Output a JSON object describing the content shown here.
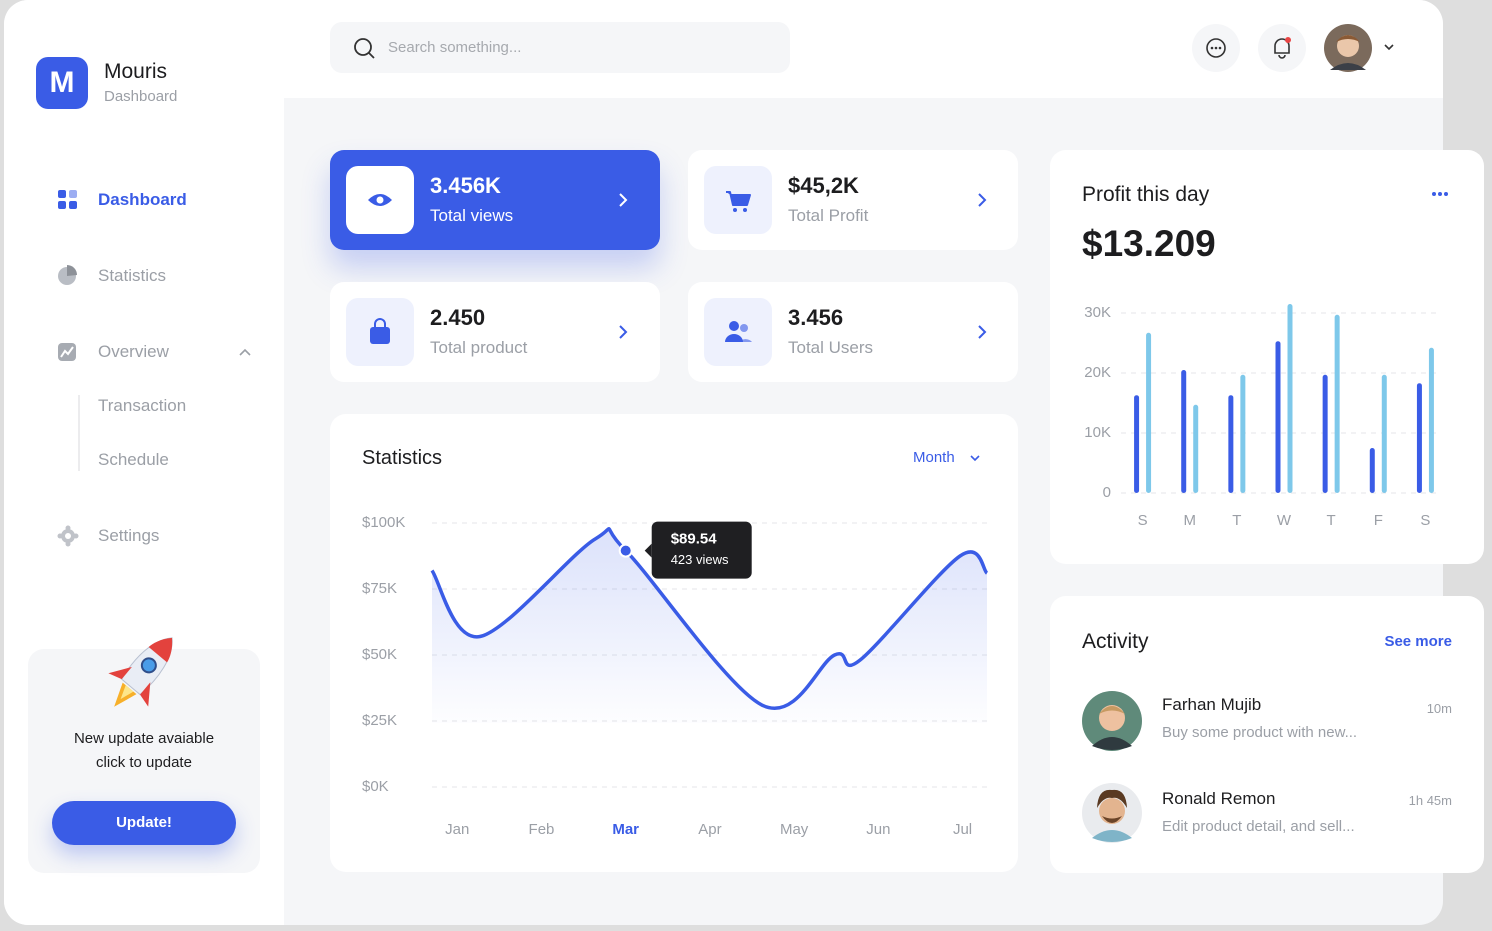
{
  "brand": {
    "logo": "M",
    "name": "Mouris",
    "subtitle": "Dashboard"
  },
  "nav": {
    "dashboard": "Dashboard",
    "statistics": "Statistics",
    "overview": "Overview",
    "overview_items": [
      "Transaction",
      "Schedule"
    ],
    "settings": "Settings"
  },
  "update_card": {
    "lines": [
      "New update avaiable",
      "click to update"
    ],
    "button": "Update!"
  },
  "search": {
    "placeholder": "Search something..."
  },
  "stat_cards": [
    {
      "value": "3.456K",
      "label": "Total views"
    },
    {
      "value": "$45,2K",
      "label": "Total Profit"
    },
    {
      "value": "2.450",
      "label": "Total product"
    },
    {
      "value": "3.456",
      "label": "Total Users"
    }
  ],
  "statistics": {
    "title": "Statistics",
    "filter": "Month",
    "chart": {
      "type": "line",
      "x": [
        -0.3,
        0.27,
        1.64,
        2,
        3.62,
        4.48,
        4.78,
        5.97,
        6.29
      ],
      "values": [
        82000,
        57000,
        94000,
        89540,
        31000,
        50000,
        48000,
        87500,
        81000
      ],
      "color": "#3a5ce6",
      "xlim": [
        -0.3,
        6.29
      ],
      "xticks": [
        {
          "value": 0,
          "label": "Jan"
        },
        {
          "value": 1,
          "label": "Feb"
        },
        {
          "value": 2,
          "label": "Mar"
        },
        {
          "value": 3,
          "label": "Apr"
        },
        {
          "value": 4,
          "label": "May"
        },
        {
          "value": 5,
          "label": "Jun"
        },
        {
          "value": 6,
          "label": "Jul"
        }
      ],
      "active_xtick": 2,
      "ylim": [
        0,
        100000
      ],
      "yticks": [
        {
          "value": 0,
          "label": "$0K"
        },
        {
          "value": 25000,
          "label": "$25K"
        },
        {
          "value": 50000,
          "label": "$50K"
        },
        {
          "value": 75000,
          "label": "$75K"
        },
        {
          "value": 100000,
          "label": "$100K"
        }
      ],
      "grid": true,
      "tooltip": {
        "index": 3,
        "value": "$89.54",
        "label": "423 views"
      }
    }
  },
  "profit": {
    "title": "Profit this day",
    "value": "$13.209",
    "chart": {
      "type": "bar",
      "categories": [
        "S",
        "M",
        "T",
        "W",
        "T",
        "F",
        "S"
      ],
      "series": [
        {
          "color": "#3a5ce6",
          "values": [
            16300,
            20500,
            16300,
            25300,
            19700,
            7500,
            18300
          ]
        },
        {
          "color": "#7ec8ea",
          "values": [
            26700,
            14700,
            19700,
            31500,
            29700,
            19700,
            24200
          ]
        }
      ],
      "ylim": [
        0,
        30000
      ],
      "yticks": [
        0,
        {
          "value": 10000,
          "label": "10K"
        },
        {
          "value": 20000,
          "label": "20K"
        },
        {
          "value": 30000,
          "label": "30K"
        }
      ],
      "grid": true
    }
  },
  "activity": {
    "title": "Activity",
    "see_more": "See more",
    "items": [
      {
        "name": "Farhan Mujib",
        "time": "10m",
        "text": "Buy some product with new..."
      },
      {
        "name": "Ronald Remon",
        "time": "1h 45m",
        "text": "Edit product detail, and sell..."
      }
    ]
  }
}
